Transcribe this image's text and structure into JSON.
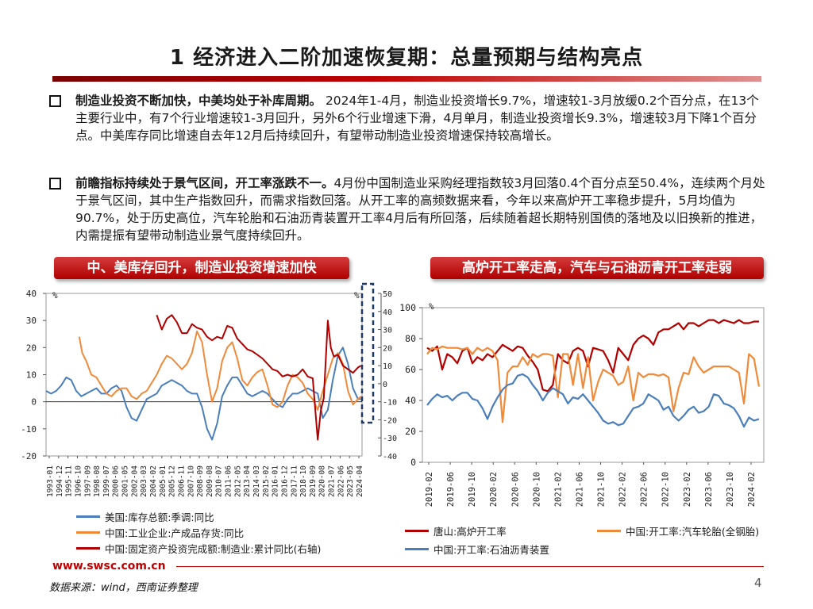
{
  "title": "1 经济进入二阶加速恢复期：总量预期与结构亮点",
  "bullets": [
    {
      "lead": "制造业投资不断加快，中美均处于补库周期。",
      "body": " 2024年1-4月，制造业投资增长9.7%，增速较1-3月放缓0.2个百分点，在13个主要行业中，有7个行业增速较1-3月回升，另外6个行业增速下滑，4月单月，制造业投资增长9.3%，增速较3月下降1个百分点。中美库存同比增速自去年12月后持续回升，有望带动制造业投资增速保持较高增长。"
    },
    {
      "lead": "前瞻指标持续处于景气区间，开工率涨跌不一。",
      "body": "4月份中国制造业采购经理指数较3月回落0.4个百分点至50.4%，连续两个月处于景气区间，其中生产指数回升，而需求指数回落。从开工率的高频数据来看，今年以来高炉开工率稳步提升，5月均值为90.7%，处于历史高位，汽车轮胎和石油沥青装置开工率4月后有所回落，后续随着超长期特别国债的落地及以旧换新的推进，内需提振有望带动制造业景气度持续回升。"
    }
  ],
  "chart_titles": {
    "left": "中、美库存回升，制造业投资增速加快",
    "right": "高炉开工率走高，汽车与石油沥青开工率走弱"
  },
  "footer": {
    "url": "www.swsc.com.cn",
    "source": "数据来源：wind，西南证券整理",
    "page": "4"
  },
  "chart_data": [
    {
      "type": "line",
      "title": "中、美库存回升，制造业投资增速加快",
      "left_axis": {
        "unit": "%",
        "ylim": [
          -20,
          40
        ],
        "ticks": [
          "40",
          "30",
          "20",
          "10",
          "0",
          "-10",
          "-20"
        ]
      },
      "right_axis": {
        "unit": "%",
        "ylim": [
          -40,
          50
        ],
        "ticks": [
          "50",
          "40",
          "30",
          "20",
          "10",
          "0",
          "-10",
          "-20",
          "-30",
          "-40"
        ]
      },
      "x_ticks": [
        "1993-01",
        "1994-12",
        "1995-11",
        "1996-10",
        "1997-09",
        "1998-08",
        "1999-07",
        "2000-06",
        "2001-05",
        "2002-04",
        "2003-03",
        "2004-02",
        "2005-01",
        "2005-12",
        "2006-11",
        "2007-10",
        "2008-09",
        "2009-08",
        "2010-07",
        "2011-06",
        "2012-05",
        "2013-04",
        "2014-03",
        "2015-02",
        "2016-01",
        "2016-12",
        "2017-11",
        "2018-10",
        "2019-09",
        "2020-08",
        "2021-07",
        "2022-06",
        "2023-05",
        "2024-04"
      ],
      "series": [
        {
          "name": "美国:库存总额:季调:同比",
          "color": "#4a7ebb",
          "axis": "left",
          "x": [
            1993.0,
            1993.5,
            1994.0,
            1994.5,
            1995.0,
            1995.5,
            1996.0,
            1996.5,
            1997.0,
            1997.5,
            1998.0,
            1998.5,
            1999.0,
            1999.5,
            2000.0,
            2000.5,
            2001.0,
            2001.5,
            2002.0,
            2002.5,
            2003.0,
            2003.5,
            2004.0,
            2004.5,
            2005.0,
            2005.5,
            2006.0,
            2006.5,
            2007.0,
            2007.5,
            2008.0,
            2008.5,
            2009.0,
            2009.5,
            2010.0,
            2010.5,
            2011.0,
            2011.5,
            2012.0,
            2012.5,
            2013.0,
            2013.5,
            2014.0,
            2014.5,
            2015.0,
            2015.5,
            2016.0,
            2016.5,
            2017.0,
            2017.5,
            2018.0,
            2018.5,
            2019.0,
            2019.5,
            2020.0,
            2020.5,
            2021.0,
            2021.5,
            2022.0,
            2022.5,
            2023.0,
            2023.5,
            2024.0,
            2024.3
          ],
          "values": [
            4,
            3,
            4,
            6,
            9,
            8,
            4,
            2,
            3,
            4,
            5,
            3,
            3,
            5,
            6,
            4,
            -2,
            -6,
            -7,
            -3,
            1,
            2,
            3,
            6,
            7,
            8,
            7,
            6,
            4,
            3,
            3,
            -2,
            -10,
            -14,
            -8,
            2,
            6,
            9,
            9,
            6,
            3,
            2,
            3,
            4,
            3,
            1,
            -1,
            -2,
            1,
            3,
            3,
            4,
            5,
            4,
            3,
            -6,
            -3,
            8,
            17,
            20,
            14,
            5,
            1,
            1
          ]
        },
        {
          "name": "中国:工业企业:产成品存货:同比",
          "color": "#ef8a3a",
          "axis": "left",
          "x": [
            1996.3,
            1996.6,
            1997.0,
            1997.5,
            1998.0,
            1998.5,
            1999.0,
            1999.5,
            2000.0,
            2000.5,
            2001.0,
            2001.5,
            2002.0,
            2002.5,
            2003.0,
            2003.5,
            2004.0,
            2004.5,
            2005.0,
            2005.5,
            2006.0,
            2006.5,
            2007.0,
            2007.5,
            2008.0,
            2008.5,
            2009.0,
            2009.5,
            2010.0,
            2010.5,
            2011.0,
            2011.5,
            2012.0,
            2012.5,
            2013.0,
            2013.5,
            2014.0,
            2014.5,
            2015.0,
            2015.5,
            2016.0,
            2016.5,
            2017.0,
            2017.5,
            2018.0,
            2018.5,
            2019.0,
            2019.5,
            2020.0,
            2020.5,
            2021.0,
            2021.5,
            2022.0,
            2022.5,
            2023.0,
            2023.5,
            2024.0,
            2024.3
          ],
          "values": [
            24,
            18,
            15,
            10,
            9,
            6,
            3,
            2,
            4,
            5,
            5,
            2,
            1,
            3,
            4,
            7,
            10,
            14,
            17,
            16,
            14,
            12,
            14,
            18,
            26,
            22,
            10,
            0,
            5,
            15,
            20,
            22,
            16,
            8,
            6,
            9,
            11,
            12,
            6,
            -1,
            -2,
            0,
            6,
            10,
            9,
            7,
            3,
            1,
            -3,
            4,
            10,
            16,
            18,
            14,
            4,
            -1,
            1,
            2
          ]
        },
        {
          "name": "中国:固定资产投资完成额:制造业:累计同比(右轴)",
          "color": "#b00000",
          "axis": "right",
          "x": [
            2004.0,
            2004.5,
            2005.0,
            2005.5,
            2006.0,
            2006.5,
            2007.0,
            2007.5,
            2008.0,
            2008.5,
            2009.0,
            2009.5,
            2010.0,
            2010.5,
            2011.0,
            2011.5,
            2012.0,
            2012.5,
            2013.0,
            2013.5,
            2014.0,
            2014.5,
            2015.0,
            2015.5,
            2016.0,
            2016.5,
            2017.0,
            2017.5,
            2018.0,
            2018.5,
            2019.0,
            2019.5,
            2020.0,
            2020.3,
            2020.6,
            2021.0,
            2021.3,
            2021.6,
            2022.0,
            2022.5,
            2023.0,
            2023.5,
            2024.0,
            2024.3
          ],
          "values": [
            38,
            30,
            36,
            38,
            34,
            28,
            28,
            33,
            31,
            30,
            26,
            24,
            26,
            25,
            32,
            31,
            25,
            22,
            19,
            18,
            16,
            14,
            11,
            8,
            7,
            4,
            5,
            4,
            5,
            8,
            4,
            3,
            -31,
            -15,
            -8,
            35,
            20,
            15,
            16,
            10,
            8,
            6,
            9,
            10
          ]
        }
      ]
    },
    {
      "type": "line",
      "title": "高炉开工率走高，汽车与石油沥青开工率走弱",
      "y_axis": {
        "unit": "%",
        "ylim": [
          0,
          100
        ],
        "ticks": [
          "100",
          "80",
          "60",
          "40",
          "20",
          "0"
        ]
      },
      "x_ticks": [
        "2019-02",
        "2019-06",
        "2019-10",
        "2020-02",
        "2020-06",
        "2020-10",
        "2021-02",
        "2021-06",
        "2021-10",
        "2022-02",
        "2022-06",
        "2022-10",
        "2023-02",
        "2023-06",
        "2023-10",
        "2024-02"
      ],
      "series": [
        {
          "name": "唐山:高炉开工率",
          "color": "#b00000",
          "x": [
            0,
            1,
            2,
            3,
            4,
            5,
            6,
            7,
            8,
            9,
            10,
            11,
            12,
            13,
            14,
            15,
            16,
            17,
            18,
            19,
            20,
            21,
            22,
            23,
            24,
            25,
            26,
            27,
            28,
            29,
            30,
            31,
            32,
            33,
            34,
            35,
            36,
            37,
            38,
            39,
            40,
            41,
            42,
            43,
            44,
            45,
            46,
            47,
            48,
            49,
            50,
            51,
            52,
            53,
            54,
            55,
            56,
            57,
            58,
            59,
            60,
            61,
            62,
            63,
            64,
            65,
            66
          ],
          "values": [
            74,
            72,
            75,
            60,
            70,
            68,
            64,
            72,
            74,
            64,
            68,
            66,
            70,
            68,
            72,
            76,
            74,
            72,
            75,
            74,
            69,
            65,
            60,
            47,
            46,
            50,
            70,
            66,
            64,
            72,
            74,
            72,
            62,
            74,
            73,
            72,
            66,
            58,
            74,
            70,
            66,
            76,
            80,
            82,
            80,
            76,
            84,
            86,
            86,
            88,
            90,
            86,
            90,
            90,
            88,
            90,
            92,
            92,
            90,
            92,
            91,
            90,
            92,
            90,
            90,
            91,
            91
          ]
        },
        {
          "name": "中国:开工率:汽车轮胎(全钢胎)",
          "color": "#ef8a3a",
          "x": [
            0,
            1,
            2,
            3,
            4,
            5,
            6,
            7,
            8,
            9,
            10,
            11,
            12,
            13,
            14,
            15,
            16,
            17,
            18,
            19,
            20,
            21,
            22,
            23,
            24,
            25,
            26,
            27,
            28,
            29,
            30,
            31,
            32,
            33,
            34,
            35,
            36,
            37,
            38,
            39,
            40,
            41,
            42,
            43,
            44,
            45,
            46,
            47,
            48,
            49,
            50,
            51,
            52,
            53,
            54,
            55,
            56,
            57,
            58,
            59,
            60,
            61,
            62,
            63,
            64,
            65,
            66
          ],
          "values": [
            70,
            74,
            73,
            75,
            74,
            74,
            74,
            73,
            74,
            70,
            74,
            72,
            74,
            72,
            66,
            26,
            58,
            62,
            62,
            68,
            63,
            70,
            68,
            70,
            70,
            69,
            42,
            70,
            70,
            50,
            70,
            48,
            68,
            40,
            52,
            60,
            58,
            56,
            50,
            52,
            62,
            40,
            58,
            55,
            57,
            57,
            56,
            57,
            55,
            33,
            48,
            58,
            57,
            68,
            62,
            58,
            60,
            62,
            62,
            62,
            62,
            60,
            58,
            38,
            70,
            67,
            49
          ]
        },
        {
          "name": "中国:开工率:石油沥青装置",
          "color": "#4a7ebb",
          "x": [
            0,
            1,
            2,
            3,
            4,
            5,
            6,
            7,
            8,
            9,
            10,
            11,
            12,
            13,
            14,
            15,
            16,
            17,
            18,
            19,
            20,
            21,
            22,
            23,
            24,
            25,
            26,
            27,
            28,
            29,
            30,
            31,
            32,
            33,
            34,
            35,
            36,
            37,
            38,
            39,
            40,
            41,
            42,
            43,
            44,
            45,
            46,
            47,
            48,
            49,
            50,
            51,
            52,
            53,
            54,
            55,
            56,
            57,
            58,
            59,
            60,
            61,
            62,
            63,
            64,
            65,
            66
          ],
          "values": [
            37,
            41,
            44,
            42,
            43,
            40,
            43,
            45,
            45,
            41,
            40,
            35,
            28,
            36,
            42,
            47,
            50,
            51,
            56,
            57,
            55,
            50,
            46,
            40,
            45,
            48,
            46,
            44,
            38,
            42,
            41,
            44,
            40,
            36,
            32,
            27,
            25,
            26,
            24,
            25,
            30,
            35,
            36,
            38,
            44,
            42,
            40,
            34,
            36,
            30,
            27,
            30,
            34,
            36,
            32,
            33,
            36,
            44,
            43,
            38,
            37,
            35,
            30,
            23,
            29,
            27,
            28
          ]
        }
      ]
    }
  ]
}
